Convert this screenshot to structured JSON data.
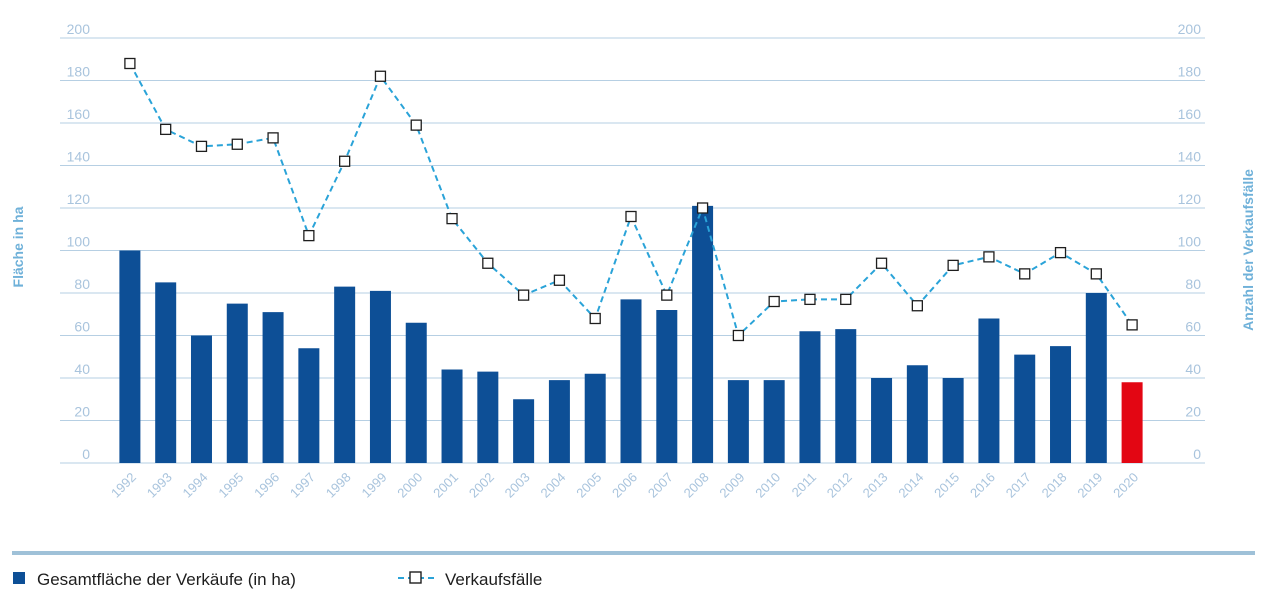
{
  "chart_data": {
    "type": "bar",
    "categories": [
      "1992",
      "1993",
      "1994",
      "1995",
      "1996",
      "1997",
      "1998",
      "1999",
      "2000",
      "2001",
      "2002",
      "2003",
      "2004",
      "2005",
      "2006",
      "2007",
      "2008",
      "2009",
      "2010",
      "2011",
      "2012",
      "2013",
      "2014",
      "2015",
      "2016",
      "2017",
      "2018",
      "2019",
      "2020"
    ],
    "series": [
      {
        "name": "Gesamtfläche der Verkäufe (in ha)",
        "type": "bar",
        "axis": "left",
        "color": "#0d4f96",
        "highlight_color": "#e30613",
        "highlight_category": "2020",
        "values": [
          100,
          85,
          60,
          75,
          71,
          54,
          83,
          81,
          66,
          44,
          43,
          30,
          39,
          42,
          77,
          72,
          121,
          39,
          39,
          62,
          63,
          40,
          46,
          40,
          68,
          51,
          55,
          80,
          38
        ]
      },
      {
        "name": "Verkaufsfälle",
        "type": "line",
        "axis": "right",
        "color": "#2aa3d8",
        "values": [
          188,
          157,
          149,
          150,
          153,
          107,
          142,
          182,
          159,
          115,
          94,
          79,
          86,
          68,
          116,
          79,
          120,
          60,
          76,
          77,
          77,
          94,
          74,
          93,
          97,
          89,
          99,
          89,
          65
        ]
      }
    ],
    "ylabel": "Fläche in ha",
    "y2label": "Anzahl der Verkaufsfälle",
    "ylim": [
      0,
      200
    ],
    "y2lim": [
      0,
      200
    ],
    "yticks": [
      "0",
      "20",
      "40",
      "60",
      "80",
      "100",
      "120",
      "140",
      "160",
      "180",
      "200"
    ],
    "grid": true,
    "legend_position": "bottom-left"
  }
}
